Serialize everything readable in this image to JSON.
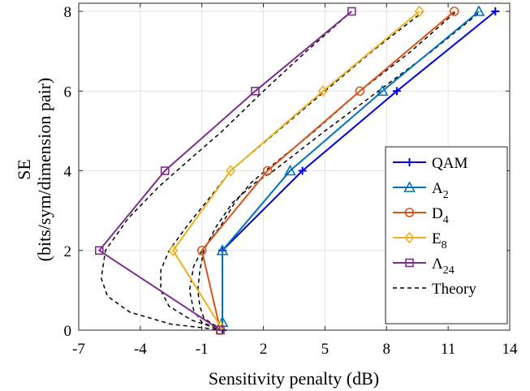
{
  "chart_data": {
    "type": "line",
    "xlabel": "Sensitivity penalty (dB)",
    "ylabel_line1": "SE",
    "ylabel_line2": "(bits/sym/dimension pair)",
    "xlim": [
      -7,
      14
    ],
    "ylim": [
      0,
      8.2
    ],
    "xticks": [
      -7,
      -4,
      -1,
      2,
      5,
      8,
      11,
      14
    ],
    "yticks": [
      0,
      2,
      4,
      6,
      8
    ],
    "grid": true,
    "legend_position": "bottom-right",
    "series": [
      {
        "name": "QAM",
        "subscript": "",
        "color": "#0000e6",
        "marker": "plus",
        "points": [
          [
            0,
            0
          ],
          [
            0,
            2
          ],
          [
            3.9,
            4
          ],
          [
            8.5,
            6
          ],
          [
            13.3,
            8
          ]
        ]
      },
      {
        "name": "A",
        "subscript": "2",
        "color": "#0072bd",
        "marker": "triangle",
        "points": [
          [
            0,
            0.2
          ],
          [
            0,
            2
          ],
          [
            3.3,
            4
          ],
          [
            7.8,
            6
          ],
          [
            12.5,
            8
          ]
        ]
      },
      {
        "name": "D",
        "subscript": "4",
        "color": "#d95319",
        "marker": "circle",
        "points": [
          [
            -0.1,
            0
          ],
          [
            -1.0,
            2
          ],
          [
            2.2,
            4
          ],
          [
            6.7,
            6
          ],
          [
            11.3,
            8
          ]
        ]
      },
      {
        "name": "E",
        "subscript": "8",
        "color": "#edb120",
        "marker": "diamond",
        "points": [
          [
            -0.1,
            0.1
          ],
          [
            -2.4,
            2
          ],
          [
            0.4,
            4
          ],
          [
            4.9,
            6
          ],
          [
            9.6,
            8
          ]
        ]
      },
      {
        "name": "Λ",
        "subscript": "24",
        "color": "#7e2f8e",
        "marker": "square",
        "points": [
          [
            -0.1,
            0
          ],
          [
            -6.0,
            2
          ],
          [
            -2.8,
            4
          ],
          [
            1.6,
            6
          ],
          [
            6.3,
            8
          ]
        ]
      }
    ],
    "theory": {
      "name": "Theory",
      "color": "#000000",
      "curves": [
        [
          [
            -0.3,
            0.1
          ],
          [
            -0.9,
            0.3
          ],
          [
            -1.1,
            0.6
          ],
          [
            -1.2,
            1.0
          ],
          [
            -1.1,
            1.5
          ],
          [
            -0.9,
            2.0
          ],
          [
            -0.3,
            2.6
          ],
          [
            0.5,
            3.2
          ],
          [
            1.6,
            3.7
          ],
          [
            2.5,
            4.0
          ],
          [
            5.0,
            5.0
          ],
          [
            7.6,
            6.0
          ],
          [
            10.2,
            7.0
          ],
          [
            12.6,
            8.0
          ]
        ],
        [
          [
            -0.3,
            0.05
          ],
          [
            -1.0,
            0.2
          ],
          [
            -1.4,
            0.5
          ],
          [
            -1.6,
            1.0
          ],
          [
            -1.4,
            1.6
          ],
          [
            -1.0,
            2.0
          ],
          [
            -0.1,
            2.6
          ],
          [
            0.6,
            3.2
          ],
          [
            1.4,
            3.7
          ],
          [
            2.1,
            4.0
          ],
          [
            4.5,
            5.0
          ],
          [
            6.7,
            6.0
          ],
          [
            9.2,
            7.0
          ],
          [
            11.4,
            8.0
          ]
        ],
        [
          [
            -0.3,
            0.05
          ],
          [
            -1.5,
            0.25
          ],
          [
            -2.6,
            0.6
          ],
          [
            -3.0,
            1.0
          ],
          [
            -3.0,
            1.5
          ],
          [
            -2.6,
            2.0
          ],
          [
            -1.6,
            2.7
          ],
          [
            -0.5,
            3.4
          ],
          [
            0.4,
            4.0
          ],
          [
            2.7,
            5.0
          ],
          [
            5.0,
            6.0
          ],
          [
            7.3,
            7.0
          ],
          [
            9.8,
            8.0
          ]
        ],
        [
          [
            -0.3,
            0.02
          ],
          [
            -2.5,
            0.15
          ],
          [
            -4.5,
            0.45
          ],
          [
            -5.6,
            0.85
          ],
          [
            -5.9,
            1.3
          ],
          [
            -5.7,
            2.0
          ],
          [
            -4.6,
            2.8
          ],
          [
            -3.1,
            3.6
          ],
          [
            -2.0,
            4.1
          ],
          [
            0.0,
            5.0
          ],
          [
            2.0,
            6.0
          ],
          [
            4.1,
            7.0
          ],
          [
            6.3,
            8.0
          ]
        ]
      ]
    }
  }
}
